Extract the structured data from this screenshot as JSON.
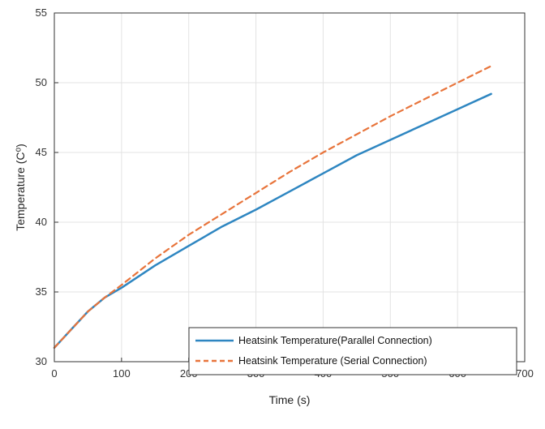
{
  "chart_data": {
    "type": "line",
    "title": "",
    "xlabel": "Time (s)",
    "ylabel": "Temperature (C⁰)",
    "xlim": [
      0,
      700
    ],
    "ylim": [
      30,
      55
    ],
    "xticks": [
      0,
      100,
      200,
      300,
      400,
      500,
      600,
      700
    ],
    "yticks": [
      30,
      35,
      40,
      45,
      50,
      55
    ],
    "grid": true,
    "legend_position": "bottom-right",
    "series": [
      {
        "name": "Heatsink Temperature(Parallel Connection)",
        "color": "#2E86C1",
        "style": "solid",
        "x": [
          0,
          25,
          50,
          75,
          100,
          150,
          200,
          250,
          300,
          350,
          400,
          450,
          500,
          550,
          600,
          650
        ],
        "y": [
          31.0,
          32.3,
          33.6,
          34.6,
          35.3,
          36.9,
          38.3,
          39.7,
          40.9,
          42.2,
          43.5,
          44.8,
          45.9,
          47.0,
          48.1,
          49.2
        ]
      },
      {
        "name": "Heatsink Temperature (Serial Connection)",
        "color": "#E8743B",
        "style": "dashed",
        "x": [
          0,
          25,
          50,
          75,
          100,
          150,
          200,
          250,
          300,
          350,
          400,
          450,
          500,
          550,
          600,
          650
        ],
        "y": [
          31.0,
          32.3,
          33.6,
          34.6,
          35.5,
          37.4,
          39.1,
          40.6,
          42.1,
          43.6,
          45.0,
          46.3,
          47.6,
          48.8,
          50.0,
          51.2
        ]
      }
    ]
  }
}
